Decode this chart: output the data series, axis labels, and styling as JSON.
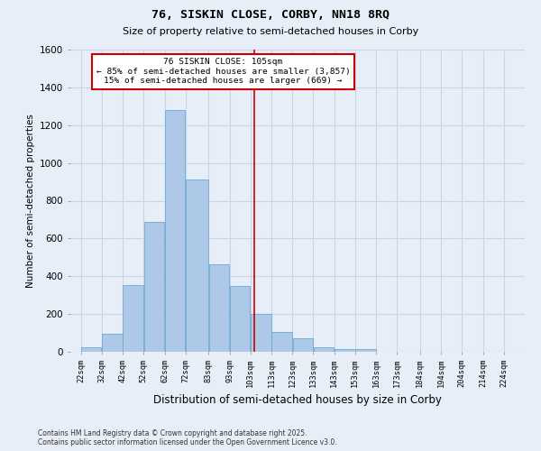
{
  "title1": "76, SISKIN CLOSE, CORBY, NN18 8RQ",
  "title2": "Size of property relative to semi-detached houses in Corby",
  "xlabel": "Distribution of semi-detached houses by size in Corby",
  "ylabel": "Number of semi-detached properties",
  "footnote1": "Contains HM Land Registry data © Crown copyright and database right 2025.",
  "footnote2": "Contains public sector information licensed under the Open Government Licence v3.0.",
  "annotation_line1": "76 SISKIN CLOSE: 105sqm",
  "annotation_line2": "← 85% of semi-detached houses are smaller (3,857)",
  "annotation_line3": "15% of semi-detached houses are larger (669) →",
  "property_sqm": 105,
  "bar_centers": [
    27,
    37,
    47,
    57,
    67,
    77.5,
    88,
    98,
    108,
    118,
    128,
    138,
    148,
    158,
    168,
    178.5,
    189,
    199,
    209,
    219
  ],
  "bar_widths": [
    10,
    10,
    10,
    10,
    10,
    11,
    10,
    10,
    10,
    10,
    10,
    10,
    10,
    10,
    10,
    11,
    10,
    10,
    10,
    10
  ],
  "bar_heights": [
    25,
    95,
    355,
    690,
    1280,
    910,
    465,
    350,
    200,
    105,
    70,
    22,
    15,
    15,
    0,
    0,
    0,
    0,
    0,
    0
  ],
  "tick_labels": [
    "22sqm",
    "32sqm",
    "42sqm",
    "52sqm",
    "62sqm",
    "72sqm",
    "83sqm",
    "93sqm",
    "103sqm",
    "113sqm",
    "123sqm",
    "133sqm",
    "143sqm",
    "153sqm",
    "163sqm",
    "173sqm",
    "184sqm",
    "194sqm",
    "204sqm",
    "214sqm",
    "224sqm"
  ],
  "tick_positions": [
    22,
    32,
    42,
    52,
    62,
    72,
    83,
    93,
    103,
    113,
    123,
    133,
    143,
    153,
    163,
    173,
    184,
    194,
    204,
    214,
    224
  ],
  "bar_color": "#aec9e8",
  "bar_edge_color": "#6aaad4",
  "vline_x": 105,
  "vline_color": "#cc0000",
  "annotation_box_color": "#ffffff",
  "annotation_box_edge": "#cc0000",
  "grid_color": "#c8d4e8",
  "background_color": "#e8eef8",
  "ylim": [
    0,
    1600
  ],
  "yticks": [
    0,
    200,
    400,
    600,
    800,
    1000,
    1200,
    1400,
    1600
  ],
  "xlim_left": 17,
  "xlim_right": 234
}
